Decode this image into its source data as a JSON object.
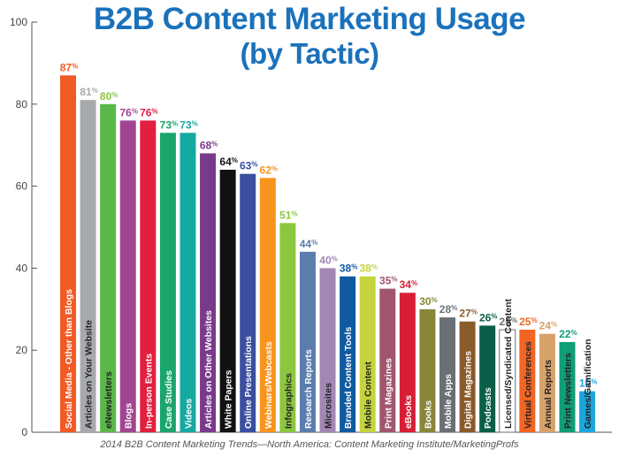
{
  "chart_data": {
    "type": "bar",
    "title": "B2B Content Marketing Usage",
    "subtitle": "(by Tactic)",
    "source": "2014 B2B Content Marketing Trends—North America: Content Marketing Institute/MarketingProfs",
    "xlabel": "",
    "ylabel": "",
    "ylim": [
      0,
      100
    ],
    "yticks": [
      0,
      20,
      40,
      60,
      80,
      100
    ],
    "grid": false,
    "legend": "none",
    "categories": [
      "Social Media - Other than Blogs",
      "Articles on Your Website",
      "eNewsletters",
      "Blogs",
      "In-person Events",
      "Case Studies",
      "Videos",
      "Articles on Other Websites",
      "White Papers",
      "Online Presentations",
      "Webinars/Webcasts",
      "Infographics",
      "Research Reports",
      "Microsites",
      "Branded Content Tools",
      "Mobile Content",
      "Print Magazines",
      "eBooks",
      "Books",
      "Mobile Apps",
      "Digital Magazines",
      "Podcasts",
      "Licensed/Syndicated Content",
      "Virtual Conferences",
      "Annual Reports",
      "Print Newsletters",
      "Games/Gamification"
    ],
    "values": [
      87,
      81,
      80,
      76,
      76,
      73,
      73,
      68,
      64,
      63,
      62,
      51,
      44,
      40,
      38,
      38,
      35,
      34,
      30,
      28,
      27,
      26,
      25,
      25,
      24,
      22,
      10
    ],
    "value_suffix": "%",
    "colors": [
      "#f15a24",
      "#a7a9ac",
      "#5ab849",
      "#a14592",
      "#e21f3f",
      "#1aa56c",
      "#16a9a1",
      "#7a3a8c",
      "#111111",
      "#3a4f9f",
      "#f7941d",
      "#8dc63f",
      "#5b7dae",
      "#a286b4",
      "#0f5aa0",
      "#c5d43c",
      "#a1566e",
      "#d81e36",
      "#8a8639",
      "#6b6f74",
      "#8b5a2b",
      "#0b5e47",
      "#ffffff",
      "#f26522",
      "#d6a26a",
      "#0f9e76",
      "#1ba6dd"
    ],
    "label_colors": [
      "#f15a24",
      "#a7a9ac",
      "#8dc63f",
      "#a14592",
      "#e21f3f",
      "#1aa56c",
      "#16a9a1",
      "#7a3a8c",
      "#111111",
      "#3a4f9f",
      "#f7941d",
      "#8dc63f",
      "#5b7dae",
      "#a286b4",
      "#0f5aa0",
      "#c5d43c",
      "#a1566e",
      "#d81e36",
      "#8a8639",
      "#6b6f74",
      "#8b5a2b",
      "#0b5e47",
      "#6b6f74",
      "#f26522",
      "#d6a26a",
      "#0f9e76",
      "#1ba6dd"
    ],
    "category_text_colors": [
      "#ffffff",
      "#222222",
      "#222222",
      "#ffffff",
      "#ffffff",
      "#ffffff",
      "#ffffff",
      "#ffffff",
      "#ffffff",
      "#ffffff",
      "#ffffff",
      "#222222",
      "#ffffff",
      "#222222",
      "#ffffff",
      "#222222",
      "#ffffff",
      "#ffffff",
      "#ffffff",
      "#ffffff",
      "#ffffff",
      "#ffffff",
      "#222222",
      "#222222",
      "#222222",
      "#222222",
      "#222222"
    ]
  }
}
